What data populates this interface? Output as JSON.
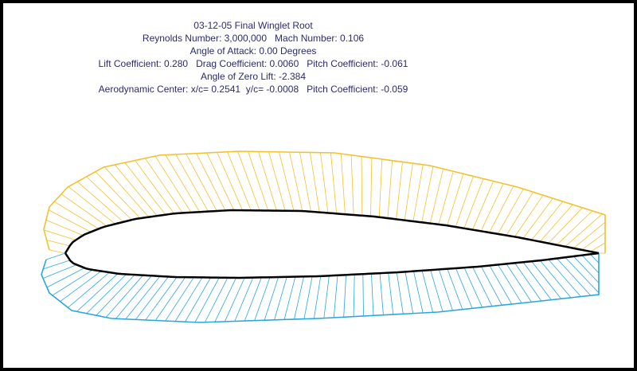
{
  "header": {
    "title": "03-12-05 Final Winglet Root",
    "line1": "Reynolds Number: 3,000,000   Mach Number: 0.106",
    "line2": "Angle of Attack: 0.00 Degrees",
    "line3": "Lift Coefficient: 0.280   Drag Coefficient: 0.0060   Pitch Coefficient: -0.061",
    "line4": "Angle of Zero Lift: -2.384",
    "line5": "Aerodynamic Center: x/c= 0.2541  y/c= -0.0008   Pitch Coefficient: -0.059"
  }
}
